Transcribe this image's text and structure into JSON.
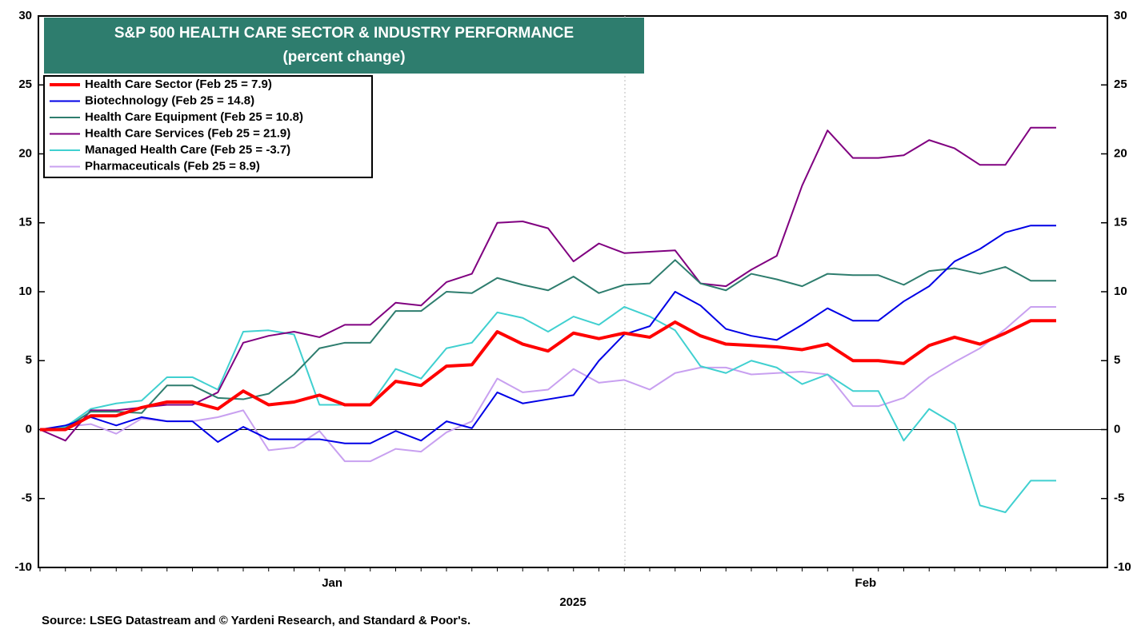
{
  "chart_data": {
    "type": "line",
    "title": "S&P 500 HEALTH CARE SECTOR & INDUSTRY PERFORMANCE",
    "subtitle": "(percent change)",
    "x_label": "2025",
    "source": "Source: LSEG Datastream and © Yardeni Research, and Standard & Poor's.",
    "categories": [
      null,
      null,
      null,
      null,
      null,
      null,
      null,
      null,
      null,
      null,
      null,
      "Jan",
      null,
      null,
      null,
      null,
      null,
      null,
      null,
      null,
      null,
      null,
      null,
      null,
      null,
      null,
      null,
      null,
      null,
      null,
      null,
      null,
      "Feb",
      null,
      null,
      null,
      null,
      null,
      null,
      null,
      null
    ],
    "ylim": [
      -10,
      30
    ],
    "yticks": [
      -10,
      -5,
      0,
      5,
      10,
      15,
      20,
      25,
      30
    ],
    "y2lim": [
      -10,
      30
    ],
    "y2ticks": [
      -10,
      -5,
      0,
      5,
      10,
      15,
      20,
      25,
      30
    ],
    "title_color": "#2e7d6e",
    "series": [
      {
        "name": "Health Care Sector (Feb 25 = 7.9)",
        "color": "#ff0000",
        "width": 4,
        "values": [
          0,
          0,
          1.0,
          1.0,
          1.6,
          2.0,
          2.0,
          1.5,
          2.8,
          1.8,
          2.0,
          2.5,
          1.8,
          1.8,
          3.5,
          3.2,
          4.6,
          4.7,
          7.1,
          6.2,
          5.7,
          7.0,
          6.6,
          7.0,
          6.7,
          7.8,
          6.8,
          6.2,
          6.1,
          6.0,
          5.8,
          6.2,
          5.0,
          5.0,
          4.8,
          6.1,
          6.7,
          6.2,
          7.0,
          7.9,
          7.9
        ]
      },
      {
        "name": "Biotechnology (Feb 25 = 14.8)",
        "color": "#0000e6",
        "width": 2,
        "values": [
          0,
          0.3,
          0.9,
          0.3,
          0.9,
          0.6,
          0.6,
          -0.9,
          0.2,
          -0.7,
          -0.7,
          -0.7,
          -1.0,
          -1.0,
          -0.1,
          -0.8,
          0.6,
          0.1,
          2.7,
          1.9,
          2.2,
          2.5,
          5.0,
          6.9,
          7.5,
          10.0,
          9.0,
          7.3,
          6.8,
          6.5,
          7.6,
          8.8,
          7.9,
          7.9,
          9.3,
          10.4,
          12.2,
          13.1,
          14.3,
          14.8,
          14.8
        ]
      },
      {
        "name": "Health Care Equipment (Feb 25 = 10.8)",
        "color": "#2e7d6e",
        "width": 2,
        "values": [
          0,
          0.1,
          1.3,
          1.3,
          1.2,
          3.2,
          3.2,
          2.3,
          2.2,
          2.6,
          4.0,
          5.9,
          6.3,
          6.3,
          8.6,
          8.6,
          10.0,
          9.9,
          11.0,
          10.5,
          10.1,
          11.1,
          9.9,
          10.5,
          10.6,
          12.3,
          10.6,
          10.1,
          11.3,
          10.9,
          10.4,
          11.3,
          11.2,
          11.2,
          10.5,
          11.5,
          11.7,
          11.3,
          11.8,
          10.8,
          10.8
        ]
      },
      {
        "name": "Health Care Services (Feb 25 = 21.9)",
        "color": "#800080",
        "width": 2,
        "values": [
          0,
          -0.8,
          1.4,
          1.4,
          1.6,
          1.8,
          1.8,
          2.7,
          6.3,
          6.8,
          7.1,
          6.7,
          7.6,
          7.6,
          9.2,
          9.0,
          10.7,
          11.3,
          15.0,
          15.1,
          14.6,
          12.2,
          13.5,
          12.8,
          12.9,
          13.0,
          10.6,
          10.4,
          11.6,
          12.6,
          17.7,
          21.7,
          19.7,
          19.7,
          19.9,
          21.0,
          20.4,
          19.2,
          19.2,
          21.9,
          21.9
        ]
      },
      {
        "name": "Managed Health Care (Feb 25 = -3.7)",
        "color": "#40d0d0",
        "width": 2,
        "values": [
          0,
          0.2,
          1.5,
          1.9,
          2.1,
          3.8,
          3.8,
          2.9,
          7.1,
          7.2,
          6.9,
          1.8,
          1.8,
          1.8,
          4.4,
          3.7,
          5.9,
          6.3,
          8.5,
          8.1,
          7.1,
          8.2,
          7.6,
          8.9,
          8.2,
          7.2,
          4.6,
          4.1,
          5.0,
          4.5,
          3.3,
          4.0,
          2.8,
          2.8,
          -0.8,
          1.5,
          0.4,
          -5.5,
          -6.0,
          -3.7,
          -3.7
        ]
      },
      {
        "name": "Pharmaceuticals (Feb 25 = 8.9)",
        "color": "#c8a0f0",
        "width": 2,
        "values": [
          0,
          0.2,
          0.4,
          -0.3,
          0.8,
          0.6,
          0.6,
          0.9,
          1.4,
          -1.5,
          -1.3,
          -0.1,
          -2.3,
          -2.3,
          -1.4,
          -1.6,
          -0.2,
          0.6,
          3.7,
          2.7,
          2.9,
          4.4,
          3.4,
          3.6,
          2.9,
          4.1,
          4.5,
          4.5,
          4.0,
          4.1,
          4.2,
          4.0,
          1.7,
          1.7,
          2.3,
          3.8,
          4.9,
          5.9,
          7.3,
          8.9,
          8.9
        ]
      }
    ]
  }
}
